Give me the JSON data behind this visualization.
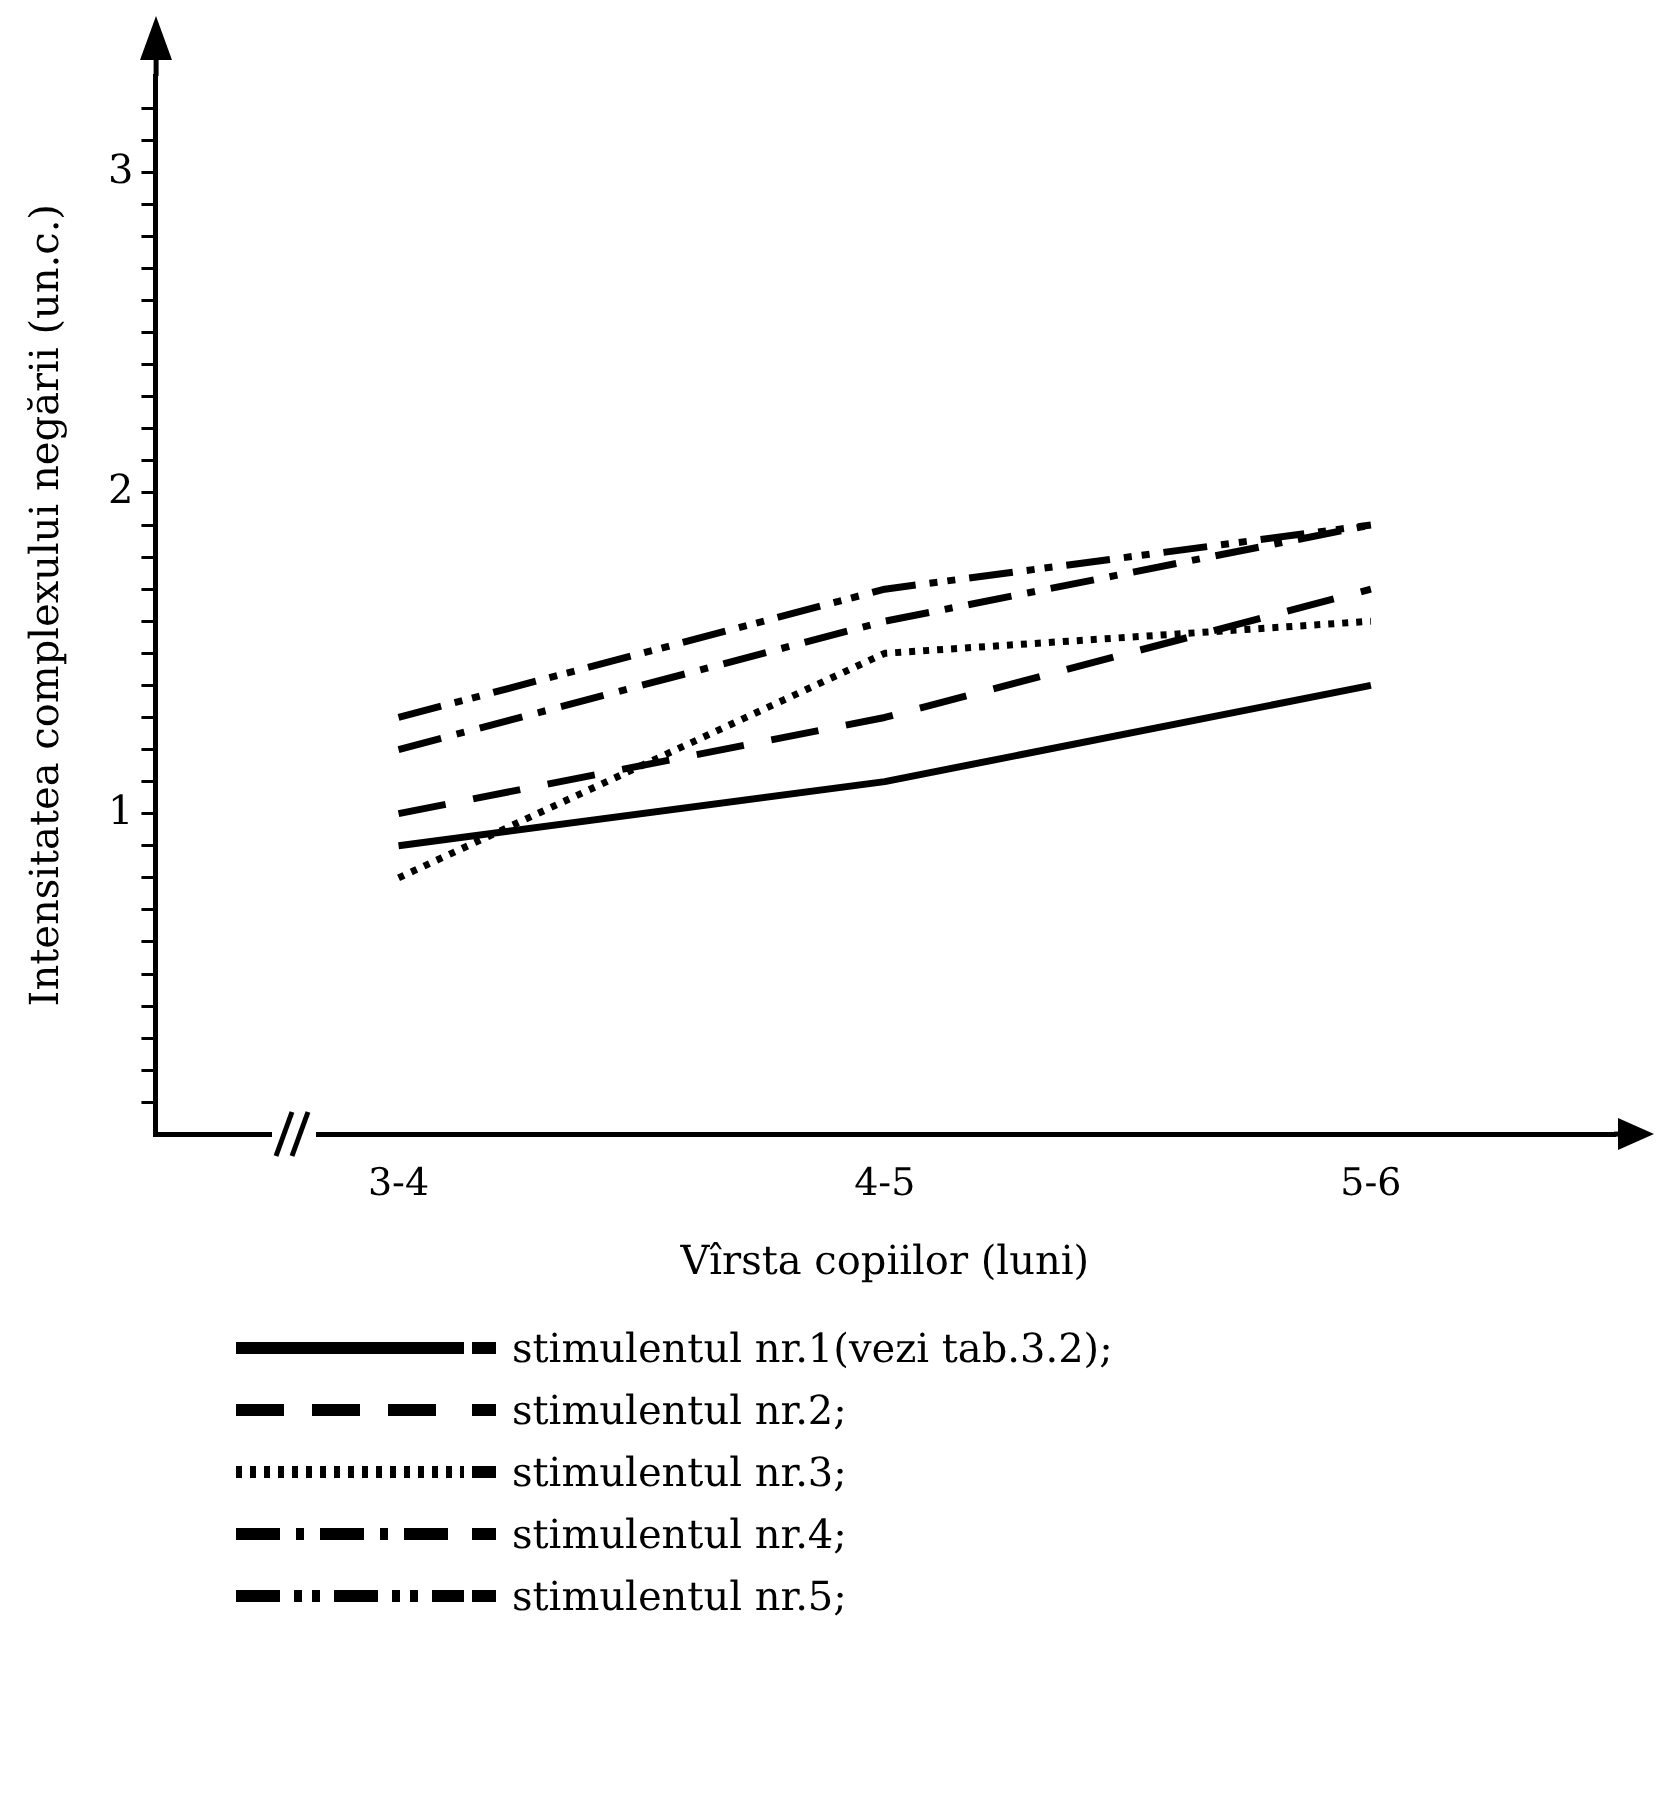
{
  "chart_data": {
    "type": "line",
    "xlabel": "Vîrsta copiilor (luni)",
    "ylabel": "Intensitatea complexului negării (un.c.)",
    "categories": [
      "3-4",
      "4-5",
      "5-6"
    ],
    "series": [
      {
        "name": "stimulentul nr.1(vezi tab.3.2);",
        "color": "#000000",
        "line_style": "solid",
        "values": [
          0.9,
          1.1,
          1.4
        ]
      },
      {
        "name": "stimulentul nr.2;",
        "color": "#000000",
        "line_style": "dashed",
        "values": [
          1.0,
          1.3,
          1.7
        ]
      },
      {
        "name": "stimulentul nr.3;",
        "color": "#000000",
        "line_style": "dotted",
        "values": [
          0.8,
          1.5,
          1.6
        ]
      },
      {
        "name": "stimulentul nr.4;",
        "color": "#000000",
        "line_style": "dashdot",
        "values": [
          1.2,
          1.6,
          1.9
        ]
      },
      {
        "name": "stimulentul nr.5;",
        "color": "#000000",
        "line_style": "dashdotdot",
        "values": [
          1.3,
          1.7,
          1.9
        ]
      }
    ],
    "ylim": [
      0,
      3.3
    ],
    "yticks": [
      {
        "value": 0.1,
        "label": null
      },
      {
        "value": 0.2,
        "label": null
      },
      {
        "value": 0.3,
        "label": null
      },
      {
        "value": 0.4,
        "label": null
      },
      {
        "value": 0.5,
        "label": null
      },
      {
        "value": 0.6,
        "label": null
      },
      {
        "value": 0.7,
        "label": null
      },
      {
        "value": 0.8,
        "label": null
      },
      {
        "value": 0.9,
        "label": null
      },
      1,
      {
        "value": 1.1,
        "label": null
      },
      {
        "value": 1.2,
        "label": null
      },
      {
        "value": 1.3,
        "label": null
      },
      {
        "value": 1.4,
        "label": null
      },
      {
        "value": 1.5,
        "label": null
      },
      {
        "value": 1.6,
        "label": null
      },
      {
        "value": 1.7,
        "label": null
      },
      {
        "value": 1.8,
        "label": null
      },
      {
        "value": 1.9,
        "label": null
      },
      2,
      {
        "value": 2.1,
        "label": null
      },
      {
        "value": 2.2,
        "label": null
      },
      {
        "value": 2.3,
        "label": null
      },
      {
        "value": 2.4,
        "label": null
      },
      {
        "value": 2.5,
        "label": null
      },
      {
        "value": 2.6,
        "label": null
      },
      {
        "value": 2.7,
        "label": null
      },
      {
        "value": 2.8,
        "label": null
      },
      {
        "value": 2.9,
        "label": null
      },
      3,
      {
        "value": 3.1,
        "label": null
      },
      {
        "value": 3.2,
        "label": null
      }
    ],
    "grid": false,
    "legend": "bottom",
    "marker": "none"
  }
}
